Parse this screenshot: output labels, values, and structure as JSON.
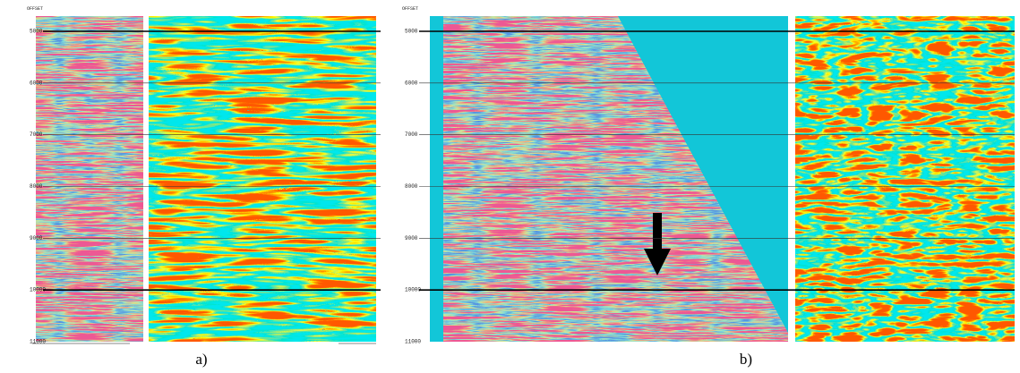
{
  "panels": [
    {
      "axis_label": "OFFSET",
      "depth_labels": [
        "5000",
        "6000",
        "7000",
        "8000",
        "9000",
        "10000",
        "11000"
      ],
      "caption": "a)"
    },
    {
      "axis_label": "OFFSET",
      "depth_labels": [
        "5000",
        "6000",
        "7000",
        "8000",
        "9000",
        "10000",
        "11000"
      ],
      "caption": "b)"
    }
  ]
}
